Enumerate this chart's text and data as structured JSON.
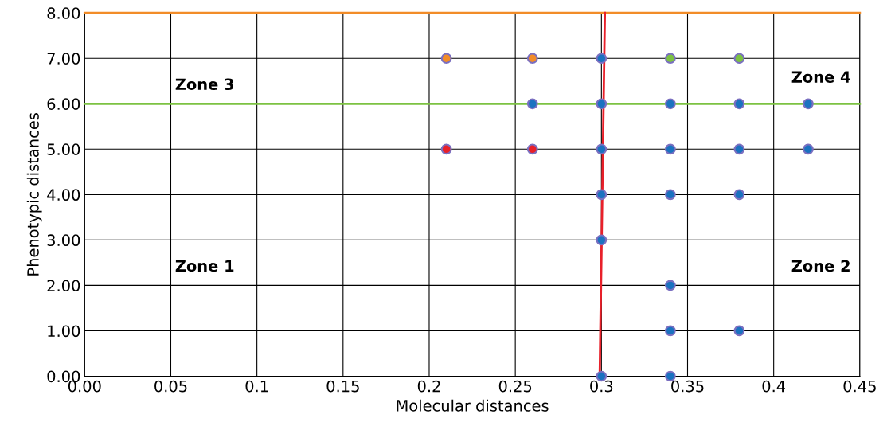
{
  "chart_data": {
    "type": "scatter",
    "xlabel": "Molecular distances",
    "ylabel": "Phenotypic distances",
    "xlim": [
      0,
      0.45
    ],
    "ylim": [
      0,
      8
    ],
    "xticks": [
      {
        "value": 0,
        "label": "0.00"
      },
      0.05,
      0.1,
      0.15,
      0.2,
      0.25,
      0.3,
      0.35,
      0.4,
      0.45
    ],
    "yticks": [
      {
        "value": 0,
        "label": "0.00"
      },
      {
        "value": 1,
        "label": "1.00"
      },
      {
        "value": 2,
        "label": "2.00"
      },
      {
        "value": 3,
        "label": "3.00"
      },
      {
        "value": 4,
        "label": "4.00"
      },
      {
        "value": 5,
        "label": "5.00"
      },
      {
        "value": 6,
        "label": "6.00"
      },
      {
        "value": 7,
        "label": "7.00"
      },
      {
        "value": 8,
        "label": "8.00"
      }
    ],
    "grid": true,
    "marker": "circle",
    "series": [
      {
        "type": "line",
        "marker": "none",
        "color": "#e8202a",
        "x": [
          0.299,
          0.302
        ],
        "values": [
          0,
          8
        ]
      },
      {
        "color": "#f28c28",
        "x": [
          0.21,
          0.26
        ],
        "values": [
          7,
          7
        ]
      },
      {
        "color": "#e8202a",
        "x": [
          0.21,
          0.26
        ],
        "values": [
          5,
          5
        ]
      },
      {
        "color": "#7cc242",
        "x": [
          0.34,
          0.38
        ],
        "values": [
          7,
          7
        ]
      },
      {
        "color": "#1b72c0",
        "x": [
          0.26,
          0.3,
          0.3,
          0.3,
          0.3,
          0.3,
          0.3,
          0.34,
          0.34,
          0.34,
          0.34,
          0.34,
          0.34,
          0.38,
          0.38,
          0.38,
          0.38,
          0.42,
          0.42
        ],
        "values": [
          6,
          7,
          6,
          5,
          4,
          3,
          0,
          6,
          5,
          4,
          2,
          1,
          0,
          6,
          5,
          4,
          1,
          6,
          5
        ]
      }
    ],
    "ref_lines": [
      {
        "axis": "y",
        "value": 6,
        "color": "#7cc242"
      },
      {
        "axis": "y",
        "value": 8,
        "color": "#f28c28"
      }
    ],
    "annotations": [
      "Zone 3",
      "Zone 4",
      "Zone 1",
      "Zone 2"
    ]
  }
}
